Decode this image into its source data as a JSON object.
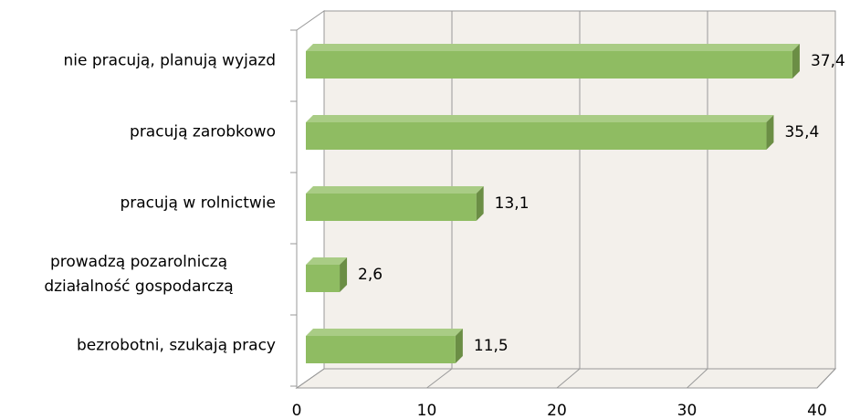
{
  "chart_data": {
    "type": "bar",
    "orientation": "horizontal",
    "categories": [
      "nie pracują, planują wyjazd",
      "pracują zarobkowo",
      "pracują w rolnictwie",
      "prowadzą pozarolniczą\ndziałalność gospodarczą",
      "bezrobotni, szukają pracy"
    ],
    "values": [
      37.4,
      35.4,
      13.1,
      2.6,
      11.5
    ],
    "value_labels": [
      "37,4",
      "35,4",
      "13,1",
      "2,6",
      "11,5"
    ],
    "color": "#8fbc62",
    "xlim": [
      0,
      40
    ],
    "xticks": [
      0,
      10,
      20,
      30,
      40
    ],
    "grid": true
  }
}
